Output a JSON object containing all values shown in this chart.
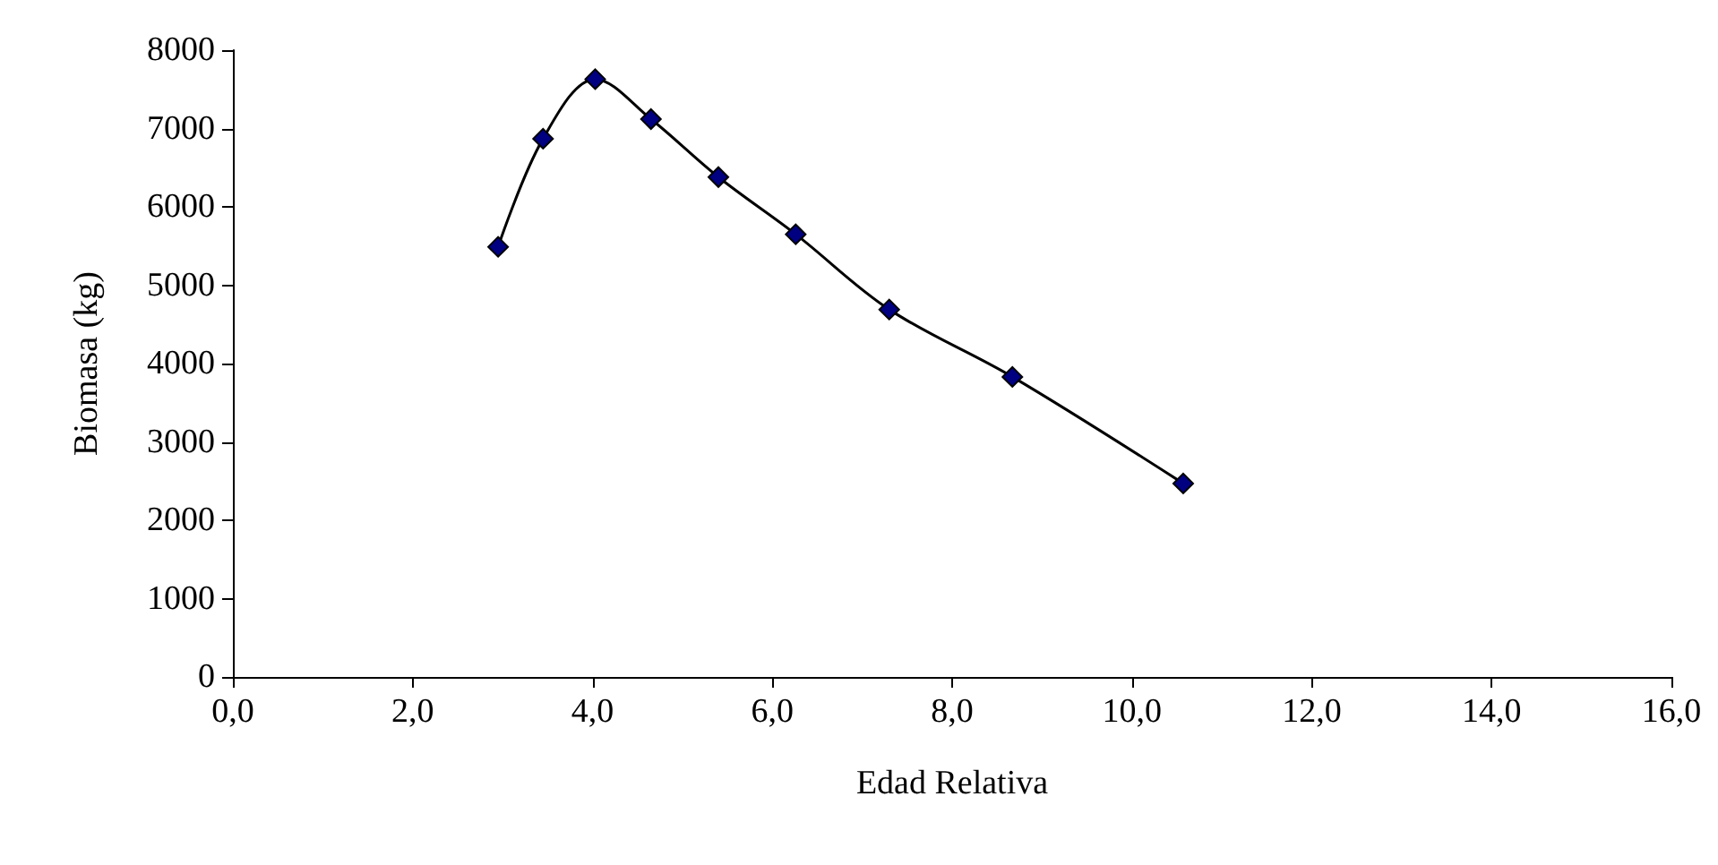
{
  "chart_data": {
    "type": "line",
    "xlabel": "Edad Relativa",
    "ylabel": "Biomasa (kg)",
    "x": [
      2.95,
      3.45,
      4.03,
      4.65,
      5.4,
      6.26,
      7.3,
      8.67,
      10.57
    ],
    "series": [
      {
        "color": "#000080",
        "values": [
          5490,
          6870,
          7630,
          7120,
          6380,
          5650,
          4690,
          3830,
          2470
        ]
      }
    ],
    "xlim": [
      0,
      16
    ],
    "xticks": [
      {
        "value": 0,
        "label": "0,0"
      },
      {
        "value": 2,
        "label": "2,0"
      },
      {
        "value": 4,
        "label": "4,0"
      },
      {
        "value": 6,
        "label": "6,0"
      },
      {
        "value": 8,
        "label": "8,0"
      },
      {
        "value": 10,
        "label": "10,0"
      },
      {
        "value": 12,
        "label": "12,0"
      },
      {
        "value": 14,
        "label": "14,0"
      },
      {
        "value": 16,
        "label": "16,0"
      }
    ],
    "ylim": [
      0,
      8000
    ],
    "yticks": [
      0,
      1000,
      2000,
      3000,
      4000,
      5000,
      6000,
      7000,
      8000
    ],
    "grid": false,
    "marker": "diamond",
    "line_style": "solid"
  }
}
